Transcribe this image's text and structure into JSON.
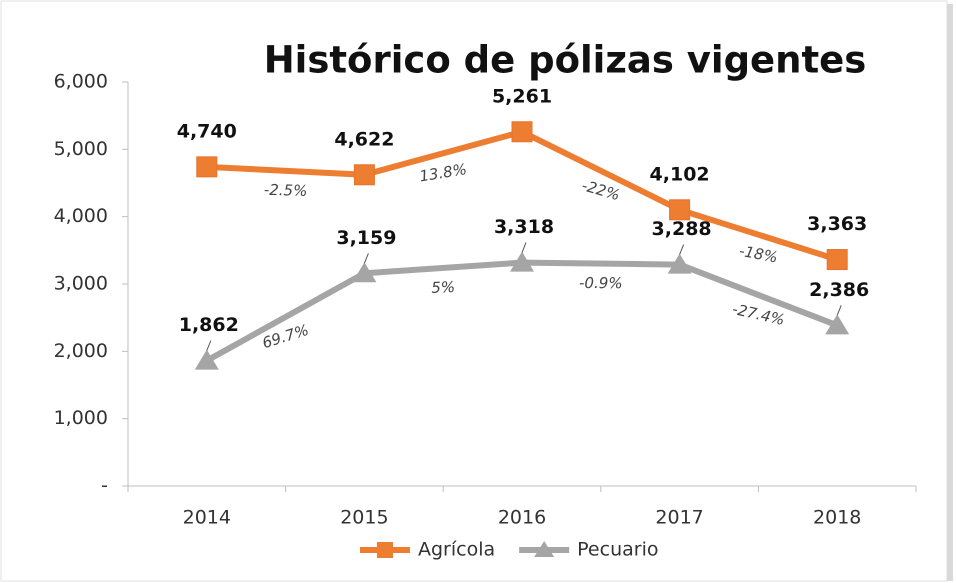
{
  "chart_data": {
    "type": "line",
    "title": "Histórico de pólizas vigentes",
    "categories": [
      "2014",
      "2015",
      "2016",
      "2017",
      "2018"
    ],
    "series": [
      {
        "name": "Agrícola",
        "color": "#ed7d31",
        "marker": "square",
        "values": [
          4740,
          4622,
          5261,
          4102,
          3363
        ],
        "value_labels": [
          "4,740",
          "4,622",
          "5,261",
          "4,102",
          "3,363"
        ],
        "change_labels": [
          "-2.5%",
          "13.8%",
          "-22%",
          "-18%"
        ]
      },
      {
        "name": "Pecuario",
        "color": "#a5a5a5",
        "marker": "triangle",
        "values": [
          1862,
          3159,
          3318,
          3288,
          2386
        ],
        "value_labels": [
          "1,862",
          "3,159",
          "3,318",
          "3,288",
          "2,386"
        ],
        "change_labels": [
          "69.7%",
          "5%",
          "-0.9%",
          "-27.4%"
        ]
      }
    ],
    "ylim": [
      0,
      6000
    ],
    "yticks": [
      {
        "value": 0,
        "label": "-"
      },
      {
        "value": 1000,
        "label": "1,000"
      },
      {
        "value": 2000,
        "label": "2,000"
      },
      {
        "value": 3000,
        "label": "3,000"
      },
      {
        "value": 4000,
        "label": "4,000"
      },
      {
        "value": 5000,
        "label": "5,000"
      },
      {
        "value": 6000,
        "label": "6,000"
      }
    ],
    "grid": false,
    "legend": "bottom"
  }
}
